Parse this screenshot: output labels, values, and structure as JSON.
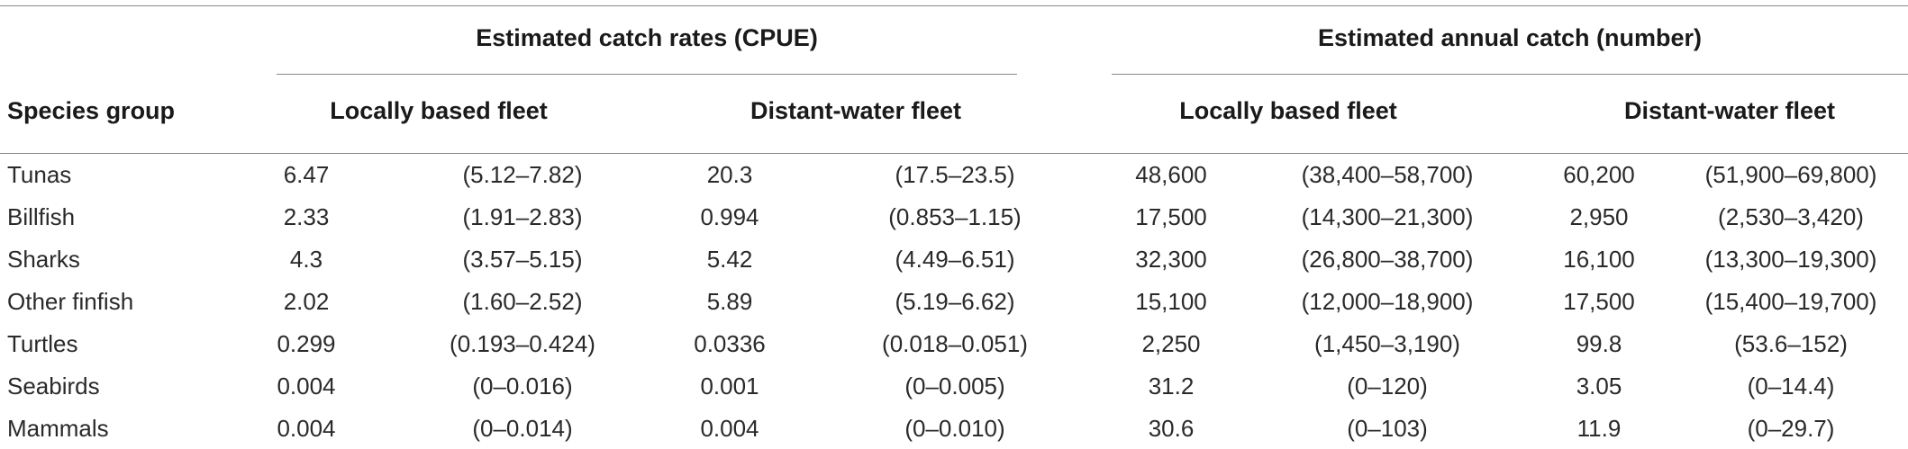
{
  "table": {
    "group_headers": {
      "cpue": "Estimated catch rates (CPUE)",
      "annual": "Estimated annual catch (number)"
    },
    "sub_headers": {
      "row_label": "Species group",
      "cpue_local": "Locally based fleet",
      "cpue_distant": "Distant-water fleet",
      "annual_local": "Locally based fleet",
      "annual_distant": "Distant-water fleet"
    },
    "rows": [
      {
        "species": "Tunas",
        "cells": [
          "6.47",
          "(5.12–7.82)",
          "20.3",
          "(17.5–23.5)",
          "48,600",
          "(38,400–58,700)",
          "60,200",
          "(51,900–69,800)"
        ]
      },
      {
        "species": "Billfish",
        "cells": [
          "2.33",
          "(1.91–2.83)",
          "0.994",
          "(0.853–1.15)",
          "17,500",
          "(14,300–21,300)",
          "2,950",
          "(2,530–3,420)"
        ]
      },
      {
        "species": "Sharks",
        "cells": [
          "4.3",
          "(3.57–5.15)",
          "5.42",
          "(4.49–6.51)",
          "32,300",
          "(26,800–38,700)",
          "16,100",
          "(13,300–19,300)"
        ]
      },
      {
        "species": "Other finfish",
        "cells": [
          "2.02",
          "(1.60–2.52)",
          "5.89",
          "(5.19–6.62)",
          "15,100",
          "(12,000–18,900)",
          "17,500",
          "(15,400–19,700)"
        ]
      },
      {
        "species": "Turtles",
        "cells": [
          "0.299",
          "(0.193–0.424)",
          "0.0336",
          "(0.018–0.051)",
          "2,250",
          "(1,450–3,190)",
          "99.8",
          "(53.6–152)"
        ]
      },
      {
        "species": "Seabirds",
        "cells": [
          "0.004",
          "(0–0.016)",
          "0.001",
          "(0–0.005)",
          "31.2",
          "(0–120)",
          "3.05",
          "(0–14.4)"
        ]
      },
      {
        "species": "Mammals",
        "cells": [
          "0.004",
          "(0–0.014)",
          "0.004",
          "(0–0.010)",
          "30.6",
          "(0–103)",
          "11.9",
          "(0–29.7)"
        ]
      }
    ]
  }
}
